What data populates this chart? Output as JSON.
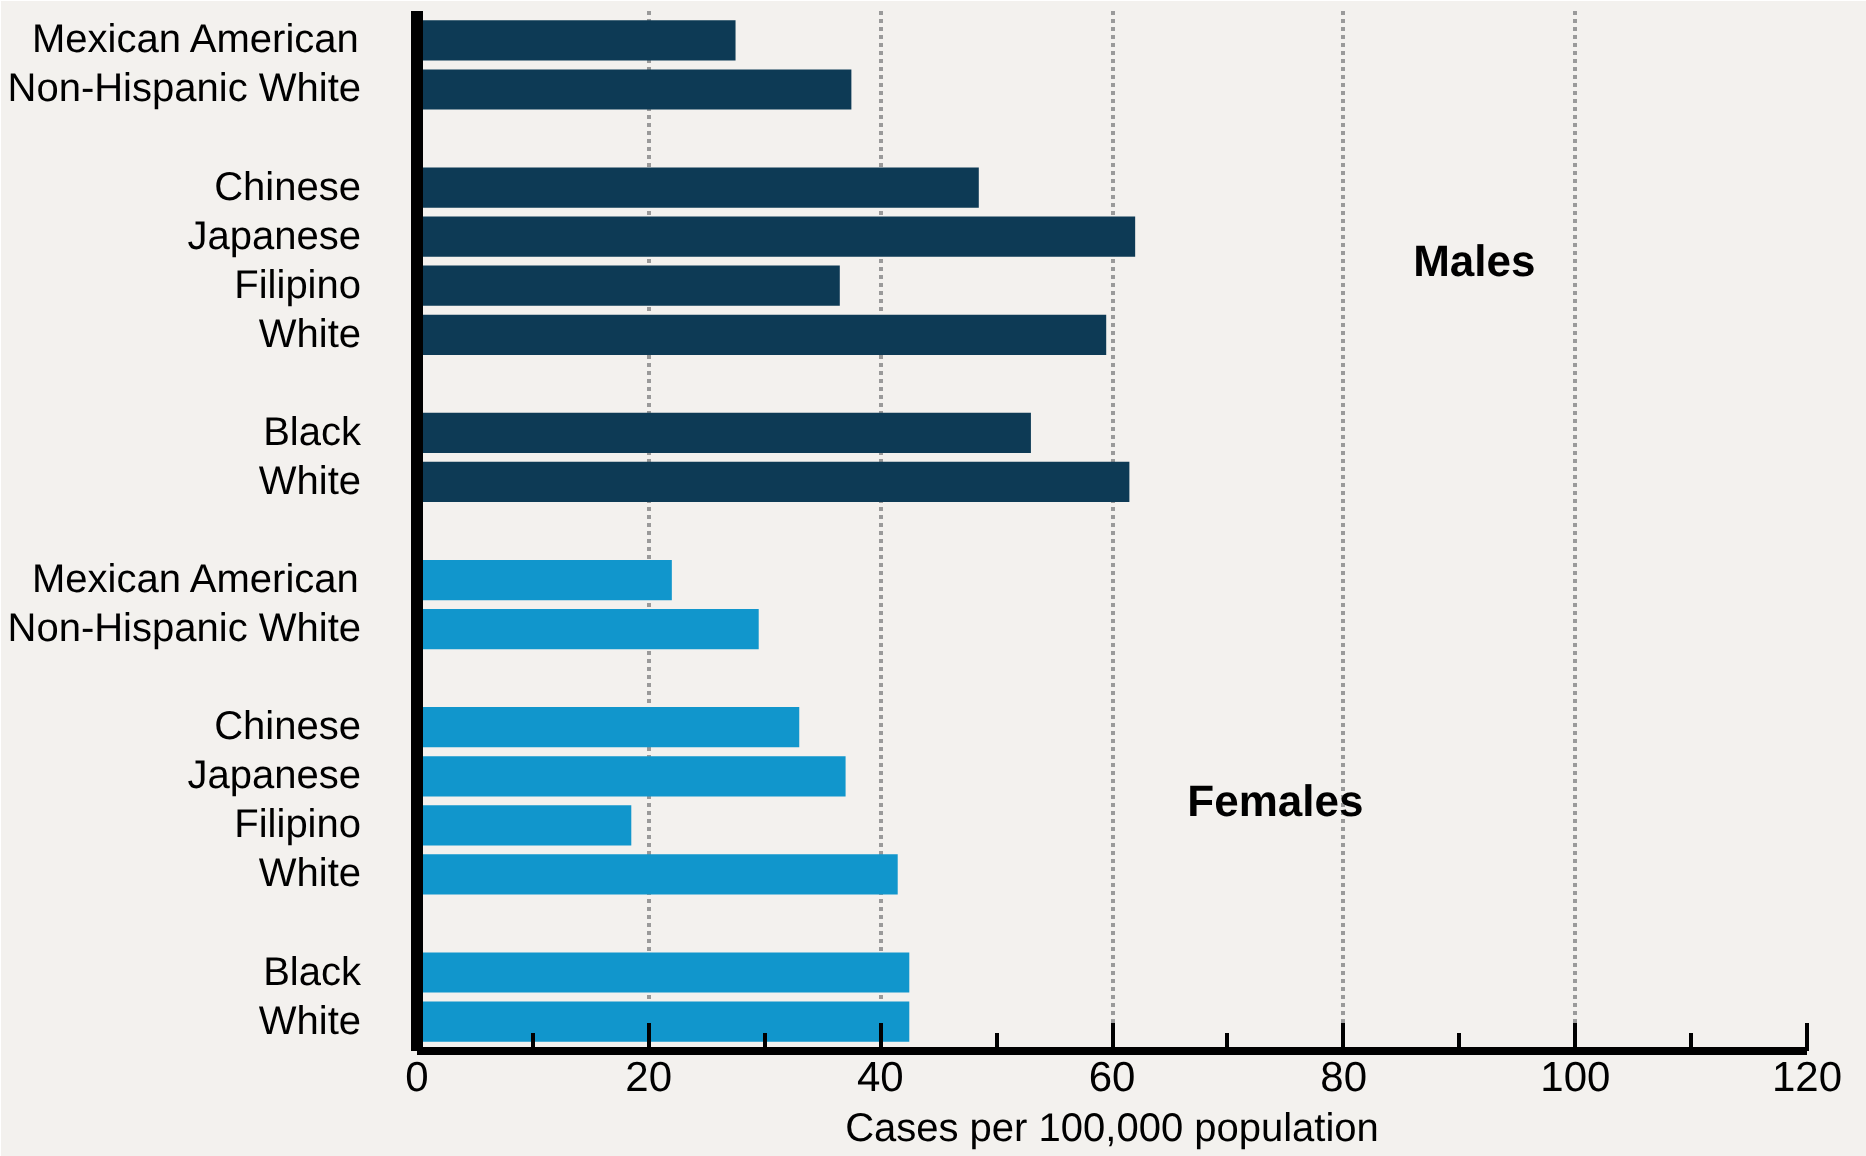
{
  "chart_data": {
    "type": "bar",
    "orientation": "horizontal",
    "xlabel": "Cases per 100,000 population",
    "categories": [
      "Mexican American",
      "Non-Hispanic White",
      null,
      "Chinese",
      "Japanese",
      "Filipino",
      "White",
      null,
      "Black",
      "White",
      null,
      "Mexican American",
      "Non-Hispanic White",
      null,
      "Chinese",
      "Japanese",
      "Filipino",
      "White",
      null,
      "Black",
      "White"
    ],
    "series": [
      {
        "name": "Males",
        "color": "#0d3a55",
        "values": [
          27.5,
          37.5,
          null,
          48.5,
          62,
          36.5,
          59.5,
          null,
          53,
          61.5,
          null,
          null,
          null,
          null,
          null,
          null,
          null,
          null,
          null,
          null,
          null
        ]
      },
      {
        "name": "Females",
        "color": "#1196cc",
        "values": [
          null,
          null,
          null,
          null,
          null,
          null,
          null,
          null,
          null,
          null,
          null,
          22,
          29.5,
          null,
          33,
          37,
          18.5,
          41.5,
          null,
          42.5,
          42.5
        ]
      }
    ],
    "xlim": [
      0,
      120
    ],
    "xticks": [
      0,
      20,
      40,
      60,
      80,
      100,
      120
    ],
    "grid": "x"
  }
}
